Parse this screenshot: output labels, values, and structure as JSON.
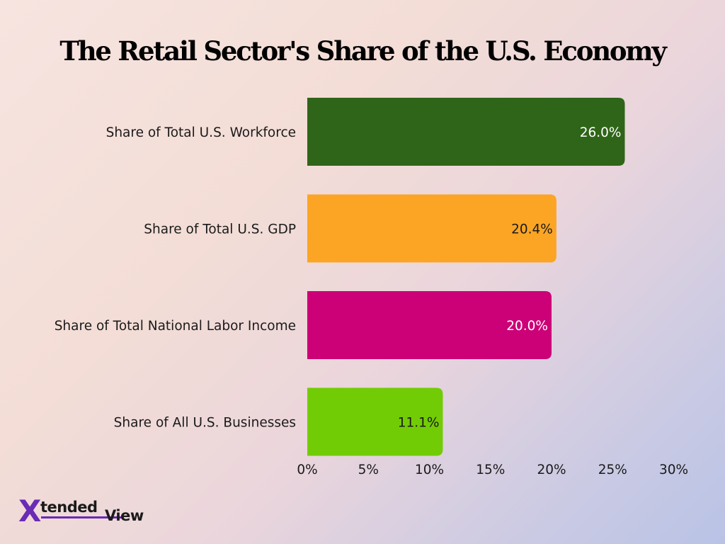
{
  "chart_data": {
    "type": "bar",
    "orientation": "horizontal",
    "title": "The Retail Sector's Share of the U.S. Economy",
    "categories": [
      "Share of Total U.S. Workforce",
      "Share of Total U.S. GDP",
      "Share of Total National Labor Income",
      "Share of All U.S. Businesses"
    ],
    "values": [
      26.0,
      20.4,
      20.0,
      11.1
    ],
    "value_labels": [
      "26.0%",
      "20.4%",
      "20.0%",
      "11.1%"
    ],
    "bar_colors": [
      "#2f6518",
      "#fca524",
      "#cc0077",
      "#72cc05"
    ],
    "label_colors": [
      "#ffffff",
      "#1a1a1a",
      "#ffffff",
      "#1a1a1a"
    ],
    "xlim": [
      0,
      30
    ],
    "xticks": [
      0,
      5,
      10,
      15,
      20,
      25,
      30
    ],
    "xtick_labels": [
      "0%",
      "5%",
      "10%",
      "15%",
      "20%",
      "25%",
      "30%"
    ],
    "grid": false,
    "legend": "none"
  },
  "brand": {
    "logo_initial": "X",
    "logo_word_1": "tended",
    "logo_word_2": "View",
    "accent_color": "#6a2bb5"
  }
}
